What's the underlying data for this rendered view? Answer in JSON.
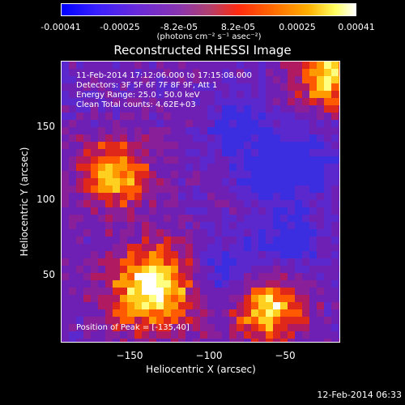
{
  "colorbar": {
    "ticks": [
      "-0.00041",
      "-0.00025",
      "-8.2e-05",
      "8.2e-05",
      "0.00025",
      "0.00041"
    ],
    "units": "(photons cm⁻² s⁻¹ asec⁻²)"
  },
  "chart_data": {
    "type": "heatmap",
    "title": "Reconstructed RHESSI Image",
    "xlabel": "Heliocentric X (arcsec)",
    "ylabel": "Heliocentric Y (arcsec)",
    "xlim": [
      -198,
      -5
    ],
    "ylim": [
      2,
      195
    ],
    "x_ticks": [
      -150,
      -100,
      -50
    ],
    "y_ticks": [
      50,
      100,
      150
    ],
    "x_tick_labels": [
      "−150",
      "−100",
      "−50"
    ],
    "y_tick_labels": [
      "50",
      "100",
      "150"
    ],
    "colorscale_range": [
      -0.00041,
      0.00041
    ],
    "sources": [
      {
        "x": -135,
        "y": 40,
        "label": "peak"
      },
      {
        "x": -55,
        "y": 25
      },
      {
        "x": -160,
        "y": 118
      },
      {
        "x": -15,
        "y": 185
      }
    ]
  },
  "annotations": {
    "time": "11-Feb-2014 17:12:06.000 to 17:15:08.000",
    "detectors": "Detectors: 3F 5F 6F 7F 8F 9F, Att 1",
    "energy": "Energy Range: 25.0 - 50.0 keV",
    "clean": "Clean      Total counts: 4.62E+03",
    "peak": "Position of Peak = [-135,40]"
  },
  "footer": {
    "timestamp": "12-Feb-2014 06:33"
  }
}
